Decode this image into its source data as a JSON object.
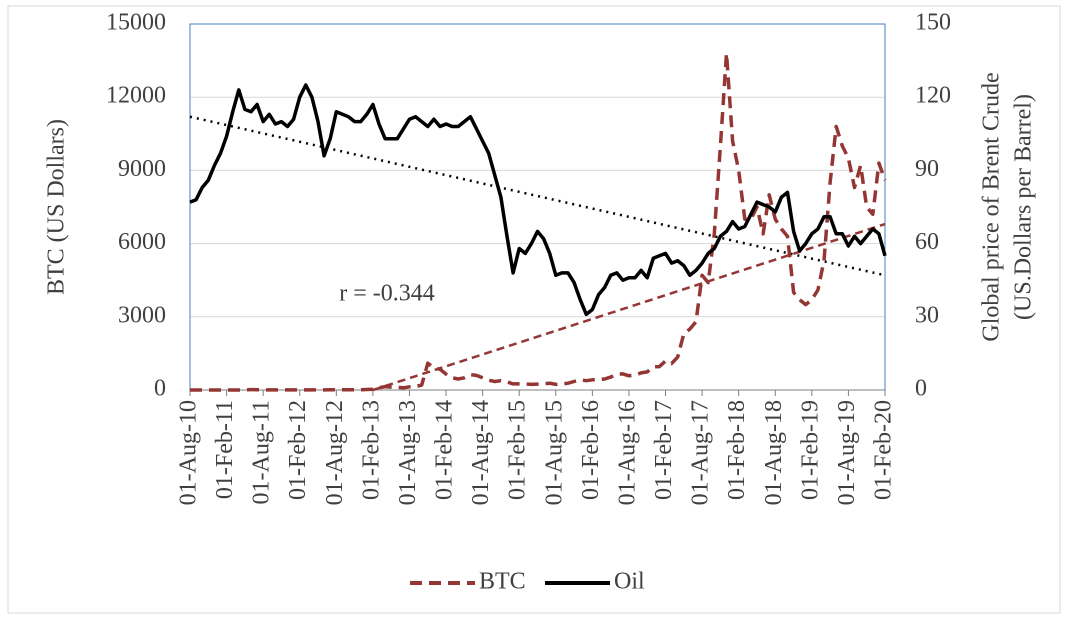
{
  "chart_data": {
    "type": "line",
    "categories": [
      "01-Aug-10",
      null,
      null,
      null,
      null,
      null,
      "01-Feb-11",
      null,
      null,
      null,
      null,
      null,
      "01-Aug-11",
      null,
      null,
      null,
      null,
      null,
      "01-Feb-12",
      null,
      null,
      null,
      null,
      null,
      "01-Aug-12",
      null,
      null,
      null,
      null,
      null,
      "01-Feb-13",
      null,
      null,
      null,
      null,
      null,
      "01-Aug-13",
      null,
      null,
      null,
      null,
      null,
      "01-Feb-14",
      null,
      null,
      null,
      null,
      null,
      "01-Aug-14",
      null,
      null,
      null,
      null,
      null,
      "01-Feb-15",
      null,
      null,
      null,
      null,
      null,
      "01-Aug-15",
      null,
      null,
      null,
      null,
      null,
      "01-Feb-16",
      null,
      null,
      null,
      null,
      null,
      "01-Aug-16",
      null,
      null,
      null,
      null,
      null,
      "01-Feb-17",
      null,
      null,
      null,
      null,
      null,
      "01-Aug-17",
      null,
      null,
      null,
      null,
      null,
      "01-Feb-18",
      null,
      null,
      null,
      null,
      null,
      "01-Aug-18",
      null,
      null,
      null,
      null,
      null,
      "01-Feb-19",
      null,
      null,
      null,
      null,
      null,
      "01-Aug-19",
      null,
      null,
      null,
      null,
      null,
      "01-Feb-20"
    ],
    "series": [
      {
        "name": "BTC",
        "color": "#943634",
        "dash": "12 7",
        "axis": "y",
        "values": [
          0,
          0,
          0,
          0,
          0,
          0,
          0,
          0,
          0,
          10,
          15,
          14,
          10,
          5,
          3,
          3,
          4,
          6,
          5,
          5,
          5,
          5,
          6,
          8,
          10,
          12,
          12,
          11,
          13,
          20,
          30,
          90,
          140,
          120,
          110,
          90,
          130,
          140,
          200,
          1100,
          900,
          850,
          650,
          500,
          450,
          500,
          630,
          600,
          500,
          400,
          350,
          380,
          330,
          250,
          250,
          250,
          230,
          240,
          250,
          280,
          230,
          240,
          280,
          350,
          420,
          380,
          420,
          420,
          450,
          530,
          650,
          660,
          580,
          610,
          700,
          740,
          950,
          960,
          1190,
          1080,
          1350,
          2300,
          2500,
          2800,
          4700,
          4400,
          6400,
          10000,
          13800,
          10200,
          9000,
          7000,
          7000,
          7500,
          6400,
          8000,
          7000,
          6600,
          6300,
          4000,
          3700,
          3500,
          3700,
          4100,
          5300,
          8500,
          10800,
          10000,
          9500,
          8300,
          9200,
          7500,
          7200,
          9300,
          8600
        ]
      },
      {
        "name": "Oil",
        "color": "#000000",
        "dash": null,
        "axis": "y2",
        "values": [
          77,
          78,
          83,
          86,
          92,
          97,
          104,
          114,
          123,
          115,
          114,
          117,
          110,
          113,
          109,
          110,
          108,
          111,
          120,
          125,
          120,
          110,
          96,
          103,
          114,
          113,
          112,
          110,
          110,
          113,
          117,
          109,
          103,
          103,
          103,
          107,
          111,
          112,
          110,
          108,
          111,
          108,
          109,
          108,
          108,
          110,
          112,
          107,
          102,
          97,
          88,
          79,
          63,
          48,
          58,
          56,
          60,
          65,
          62,
          56,
          47,
          48,
          48,
          44,
          37,
          31,
          33,
          39,
          42,
          47,
          48,
          45,
          46,
          46,
          49,
          46,
          54,
          55,
          56,
          52,
          53,
          51,
          47,
          49,
          52,
          56,
          58,
          63,
          65,
          69,
          66,
          67,
          72,
          77,
          76,
          75,
          73,
          79,
          81,
          65,
          57,
          60,
          64,
          66,
          71,
          71,
          64,
          64,
          59,
          63,
          60,
          63,
          66,
          64,
          55
        ]
      }
    ],
    "trendlines": [
      {
        "axis": "y2",
        "from": "01-Aug-10",
        "to": "01-Feb-20",
        "values": [
          112,
          47
        ],
        "color": "#000000",
        "dash": "2 5"
      },
      {
        "axis": "y",
        "from": "01-Feb-13",
        "to": "01-Feb-20",
        "values": [
          0,
          6800
        ],
        "color": "#943634",
        "dash": "8 5"
      }
    ],
    "ylabel": "BTC (US Dollars)",
    "y2label": [
      "Global price of Brent Crude",
      "(US.Dollars per Barrel)"
    ],
    "annotation": "r = -0.344",
    "ylim": [
      0,
      15000
    ],
    "yticks": [
      0,
      3000,
      6000,
      9000,
      12000,
      15000
    ],
    "y2lim": [
      0,
      150
    ],
    "y2ticks": [
      0,
      30,
      60,
      90,
      120,
      150
    ],
    "grid": true,
    "legend": "bottom"
  }
}
